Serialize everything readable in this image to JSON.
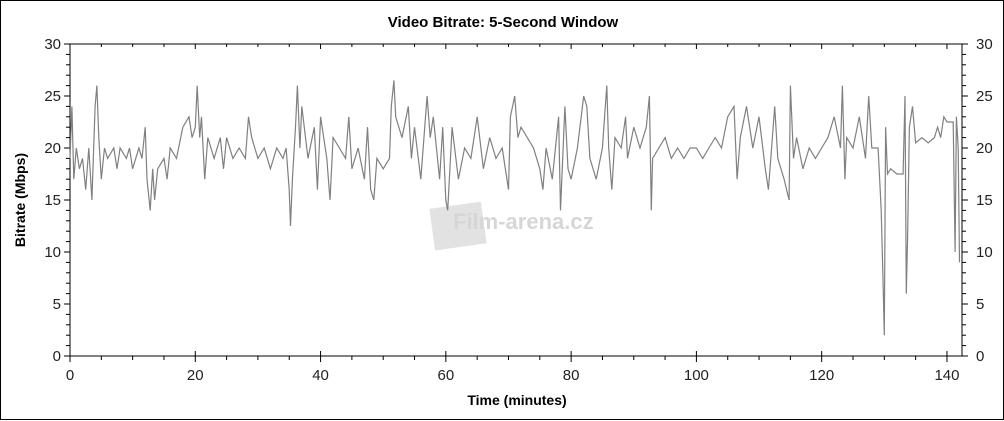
{
  "chart_data": {
    "type": "line",
    "title": "Video Bitrate: 5-Second Window",
    "xlabel": "Time (minutes)",
    "ylabel": "Bitrate (Mbps)",
    "xlim": [
      0,
      142.4
    ],
    "ylim": [
      0,
      30
    ],
    "x_ticks": [
      "0",
      "20",
      "40",
      "60",
      "80",
      "100",
      "120",
      "140"
    ],
    "y_ticks": [
      "0",
      "5",
      "10",
      "15",
      "20",
      "25",
      "30"
    ],
    "y_ticks_right": [
      "0",
      "5",
      "10",
      "15",
      "20",
      "25",
      "30"
    ],
    "grid": false,
    "line_color": "#808080",
    "watermark": "Film-arena.cz",
    "series": [
      {
        "x": [
          0,
          0.3,
          0.6,
          1,
          1.5,
          2,
          2.5,
          3,
          3.5,
          4,
          4.3,
          4.6,
          5,
          5.5,
          6,
          7,
          7.5,
          8,
          9,
          9.5,
          10,
          11,
          11.5,
          12,
          12.3,
          12.8,
          13.2,
          13.5,
          14,
          15,
          15.5,
          16,
          17,
          18,
          19,
          19.5,
          20,
          20.3,
          20.7,
          21,
          21.5,
          22,
          23,
          24,
          24.5,
          25,
          26,
          27,
          28,
          28.5,
          29,
          30,
          31,
          32,
          33,
          34,
          34.5,
          35,
          35.2,
          35.5,
          36,
          36.3,
          36.7,
          37,
          38,
          39,
          39.5,
          40,
          41,
          41.5,
          42,
          43,
          44,
          44.5,
          45,
          46,
          47,
          47.5,
          48,
          48.5,
          49,
          50,
          51,
          51.3,
          51.7,
          52,
          53,
          54,
          54.5,
          55,
          56,
          57,
          57.5,
          58,
          59,
          59.5,
          60,
          60.3,
          61,
          62,
          63,
          64,
          65,
          66,
          67,
          68,
          69,
          70,
          70.3,
          71,
          71.5,
          72,
          73,
          74,
          75,
          75.5,
          76,
          77,
          78,
          78.3,
          79,
          79.5,
          80,
          81,
          82,
          82.5,
          83,
          84,
          85,
          85.7,
          86,
          86.5,
          87,
          88,
          88.7,
          89,
          90,
          91,
          92,
          92.5,
          92.8,
          93,
          94,
          95,
          96,
          97,
          98,
          99,
          100,
          101,
          102,
          103,
          104,
          105,
          106,
          106.5,
          107,
          108,
          109,
          110,
          111,
          111.5,
          112,
          112.5,
          113,
          114,
          114.8,
          115,
          115.5,
          116,
          117,
          118,
          119,
          120,
          121,
          122,
          123,
          123.3,
          123.7,
          124,
          125,
          126,
          127,
          127.5,
          128,
          129,
          129.5,
          129.8,
          130,
          130.2,
          130.5,
          131,
          132,
          133,
          133.3,
          133.5,
          133.7,
          134,
          134.5,
          135,
          136,
          137,
          138,
          138.5,
          139,
          139.5,
          140,
          141,
          141.3,
          141.5,
          141.8,
          142
        ],
        "y": [
          19,
          24,
          17,
          20,
          18,
          19,
          16,
          20,
          15,
          24,
          26,
          21,
          17,
          20,
          19,
          20,
          18,
          20,
          19,
          20,
          18,
          20,
          19,
          22,
          17,
          14,
          18,
          15,
          18,
          19,
          17,
          20,
          19,
          22,
          23,
          21,
          22,
          26,
          21,
          23,
          17,
          21,
          19,
          21,
          18,
          21,
          19,
          20,
          19,
          23,
          21,
          19,
          20,
          18,
          20,
          19,
          20,
          16,
          12.5,
          17,
          22,
          26,
          20,
          24,
          19,
          22,
          16,
          23,
          19,
          15,
          21,
          20,
          19,
          23,
          18,
          20,
          17,
          22,
          16,
          15,
          19,
          18,
          19,
          24,
          26.5,
          23,
          21,
          24,
          19,
          22,
          17,
          25,
          21,
          23,
          17,
          22,
          15,
          14,
          22,
          17,
          20,
          19,
          23,
          18,
          21,
          19,
          20,
          16,
          23,
          25,
          21,
          22,
          21,
          20,
          18,
          16,
          20,
          17,
          23,
          14,
          24,
          18,
          17,
          20,
          25,
          24,
          19,
          17,
          20,
          26,
          20,
          16,
          21,
          20,
          23,
          19,
          22,
          20,
          22,
          25,
          14,
          19,
          20,
          21,
          19,
          20,
          19,
          20,
          20,
          19,
          20,
          21,
          20,
          23,
          24,
          17,
          21,
          24,
          20,
          23,
          18,
          16,
          20,
          24,
          19,
          17,
          15,
          26,
          19,
          21,
          18,
          20,
          19,
          20,
          21,
          23,
          20,
          26,
          17,
          21,
          20,
          23,
          19,
          25,
          20,
          20,
          14,
          7,
          2,
          22,
          17.5,
          18,
          17.5,
          17.5,
          25,
          6,
          11,
          22,
          24,
          20.5,
          21,
          20.5,
          21,
          22,
          21,
          23,
          22.5,
          22.5,
          10,
          23,
          20,
          9
        ]
      }
    ]
  }
}
